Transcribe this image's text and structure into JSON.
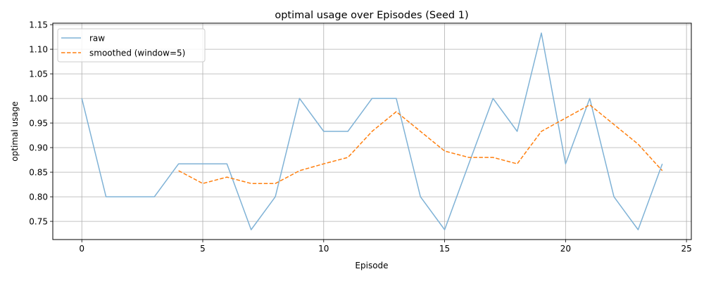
{
  "chart_data": {
    "type": "line",
    "title": "optimal usage over Episodes (Seed 1)",
    "xlabel": "Episode",
    "ylabel": "optimal usage",
    "xlim": [
      -1.2,
      25.2
    ],
    "ylim": [
      0.713,
      1.153
    ],
    "xticks": [
      0,
      5,
      10,
      15,
      20,
      25
    ],
    "yticks": [
      0.75,
      0.8,
      0.85,
      0.9,
      0.95,
      1.0,
      1.05,
      1.1,
      1.15
    ],
    "grid": true,
    "legend_position": "top-left",
    "series": [
      {
        "name": "raw",
        "color": "#7fb2d6",
        "style": "solid",
        "x": [
          0,
          1,
          2,
          3,
          4,
          5,
          6,
          7,
          8,
          9,
          10,
          11,
          12,
          13,
          14,
          15,
          16,
          17,
          18,
          19,
          20,
          21,
          22,
          23,
          24
        ],
        "values": [
          1.0,
          0.8,
          0.8,
          0.8,
          0.867,
          0.867,
          0.867,
          0.733,
          0.8,
          1.0,
          0.933,
          0.933,
          1.0,
          1.0,
          0.8,
          0.733,
          0.867,
          1.0,
          0.933,
          1.133,
          0.867,
          1.0,
          0.8,
          0.733,
          0.867
        ]
      },
      {
        "name": "smoothed (window=5)",
        "color": "#ff7f0e",
        "style": "dashed",
        "x": [
          4,
          5,
          6,
          7,
          8,
          9,
          10,
          11,
          12,
          13,
          14,
          15,
          16,
          17,
          18,
          19,
          20,
          21,
          22,
          23,
          24
        ],
        "values": [
          0.853,
          0.827,
          0.84,
          0.827,
          0.827,
          0.853,
          0.867,
          0.88,
          0.933,
          0.973,
          0.933,
          0.893,
          0.88,
          0.88,
          0.867,
          0.933,
          0.96,
          0.987,
          0.947,
          0.907,
          0.853
        ]
      }
    ]
  }
}
